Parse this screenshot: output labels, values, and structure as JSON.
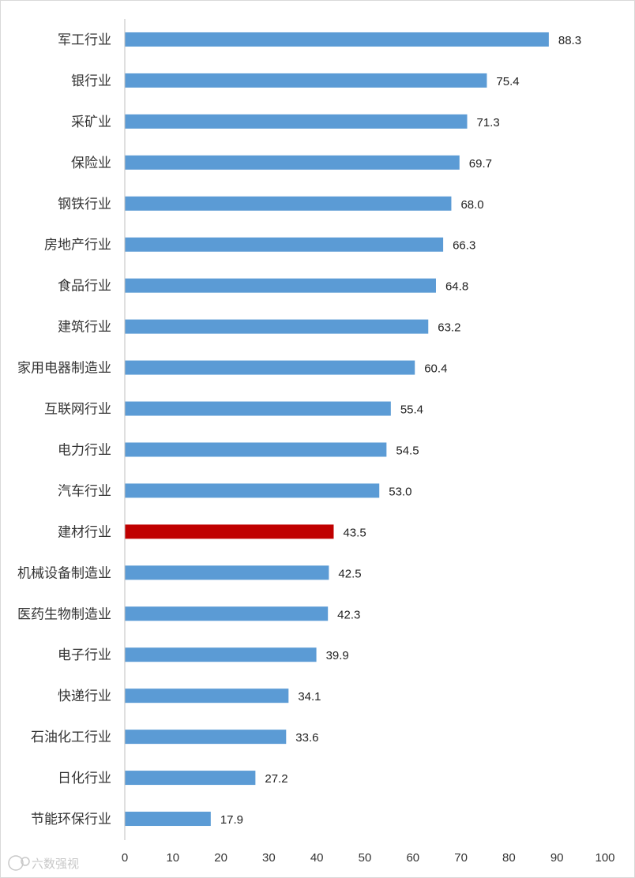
{
  "chart_data": {
    "type": "bar",
    "orientation": "horizontal",
    "categories": [
      "军工行业",
      "银行业",
      "采矿业",
      "保险业",
      "钢铁行业",
      "房地产行业",
      "食品行业",
      "建筑行业",
      "家用电器制造业",
      "互联网行业",
      "电力行业",
      "汽车行业",
      "建材行业",
      "机械设备制造业",
      "医药生物制造业",
      "电子行业",
      "快递行业",
      "石油化工行业",
      "日化行业",
      "节能环保行业"
    ],
    "values": [
      88.3,
      75.4,
      71.3,
      69.7,
      68.0,
      66.3,
      64.8,
      63.2,
      60.4,
      55.4,
      54.5,
      53.0,
      43.5,
      42.5,
      42.3,
      39.9,
      34.1,
      33.6,
      27.2,
      17.9
    ],
    "value_labels": [
      "88.3",
      "75.4",
      "71.3",
      "69.7",
      "68.0",
      "66.3",
      "64.8",
      "63.2",
      "60.4",
      "55.4",
      "54.5",
      "53.0",
      "43.5",
      "42.5",
      "42.3",
      "39.9",
      "34.1",
      "33.6",
      "27.2",
      "17.9"
    ],
    "xlim": [
      0,
      100
    ],
    "xticks": [
      0,
      10,
      20,
      30,
      40,
      50,
      60,
      70,
      80,
      90,
      100
    ],
    "grid": false,
    "highlight_category": "建材行业",
    "colors": {
      "bar": "#5b9bd5",
      "highlight": "#c00000",
      "axis": "#bfbfbf"
    },
    "title": "",
    "xlabel": "",
    "ylabel": ""
  },
  "watermark": {
    "text": "六数强视",
    "icon": "logo-icon"
  }
}
